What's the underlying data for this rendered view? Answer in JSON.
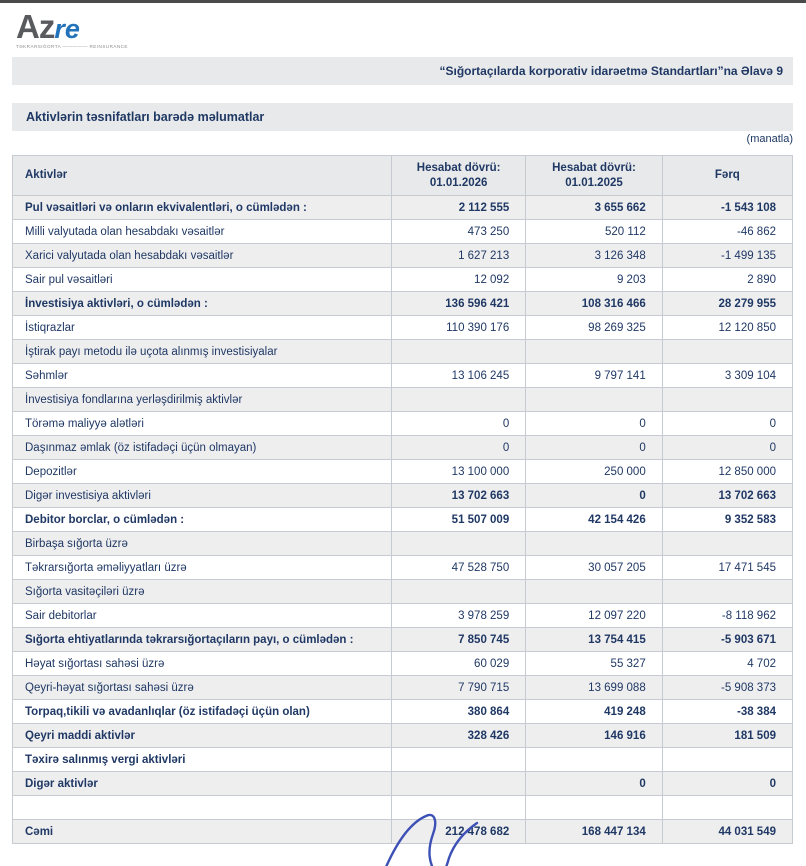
{
  "colors": {
    "navy": "#1f3864",
    "band-bg": "#e8e9ea",
    "row-shade": "#eeeeef",
    "border": "#c6cad1",
    "logo-gray": "#595a5d",
    "logo-blue": "#2273b9",
    "signature-blue": "#3c50b5"
  },
  "logo": {
    "part1": "Az",
    "part2": "re",
    "tagline": "TƏKRARSIĞORTA ————— REINSURANCE"
  },
  "header": {
    "annex_note": "“Sığortaçılarda korporativ idarəetmə Standartları”na Əlavə 9"
  },
  "title": "Aktivlərin təsnifatları barədə məlumatlar",
  "currency_note": "(manatla)",
  "table": {
    "columns": {
      "assets": "Aktivlər",
      "period_2026_line1": "Hesabat dövrü:",
      "period_2026_line2": "01.01.2026",
      "period_2025_line1": "Hesabat dövrü:",
      "period_2025_line2": "01.01.2025",
      "diff": "Fərq"
    },
    "rows": [
      {
        "label": "Pul vəsaitləri və onların ekvivalentləri, o cümlədən :",
        "v2026": "2 112 555",
        "v2025": "3 655 662",
        "diff": "-1 543 108",
        "bold": true
      },
      {
        "label": "Milli valyutada olan hesabdakı vəsaitlər",
        "v2026": "473 250",
        "v2025": "520 112",
        "diff": "-46 862"
      },
      {
        "label": "Xarici valyutada olan hesabdakı vəsaitlər",
        "v2026": "1 627 213",
        "v2025": "3 126 348",
        "diff": "-1 499 135"
      },
      {
        "label": "Sair pul vəsaitləri",
        "v2026": "12 092",
        "v2025": "9 203",
        "diff": "2 890"
      },
      {
        "label": "İnvestisiya aktivləri, o cümlədən :",
        "v2026": "136 596 421",
        "v2025": "108 316 466",
        "diff": "28 279 955",
        "bold": true
      },
      {
        "label": "İstiqrazlar",
        "v2026": "110 390 176",
        "v2025": "98 269 325",
        "diff": "12 120 850"
      },
      {
        "label": "İştirak payı metodu ilə uçota alınmış investisiyalar",
        "v2026": "",
        "v2025": "",
        "diff": ""
      },
      {
        "label": "Səhmlər",
        "v2026": "13 106 245",
        "v2025": "9 797 141",
        "diff": "3 309 104"
      },
      {
        "label": "İnvestisiya fondlarına yerləşdirilmiş aktivlər",
        "v2026": "",
        "v2025": "",
        "diff": ""
      },
      {
        "label": "Törəmə maliyyə alətləri",
        "v2026": "0",
        "v2025": "0",
        "diff": "0"
      },
      {
        "label": "Daşınmaz əmlak (öz istifadəçi üçün olmayan)",
        "v2026": "0",
        "v2025": "0",
        "diff": "0"
      },
      {
        "label": "Depozitlər",
        "v2026": "13 100 000",
        "v2025": "250 000",
        "diff": "12 850 000"
      },
      {
        "label": "Digər investisiya aktivləri",
        "v2026": "13 702 663",
        "v2025": "0",
        "diff": "13 702 663",
        "bold_values": true
      },
      {
        "label": "Debitor borclar, o cümlədən :",
        "v2026": "51 507 009",
        "v2025": "42 154 426",
        "diff": "9 352 583",
        "bold": true
      },
      {
        "label": "Birbaşa sığorta üzrə",
        "v2026": "",
        "v2025": "",
        "diff": ""
      },
      {
        "label": "Təkrarsığorta əməliyyatları üzrə",
        "v2026": "47 528 750",
        "v2025": "30 057 205",
        "diff": "17 471 545"
      },
      {
        "label": "Sığorta vasitəçiləri üzrə",
        "v2026": "",
        "v2025": "",
        "diff": ""
      },
      {
        "label": "Sair debitorlar",
        "v2026": "3 978 259",
        "v2025": "12 097 220",
        "diff": "-8 118 962"
      },
      {
        "label": "Sığorta ehtiyatlarında təkrarsığortaçıların payı, o cümlədən :",
        "v2026": "7 850 745",
        "v2025": "13 754 415",
        "diff": "-5 903 671",
        "bold": true
      },
      {
        "label": "Həyat sığortası sahəsi üzrə",
        "v2026": "60 029",
        "v2025": "55 327",
        "diff": "4 702"
      },
      {
        "label": "Qeyri-həyat sığortası sahəsi üzrə",
        "v2026": "7 790 715",
        "v2025": "13 699 088",
        "diff": "-5 908 373"
      },
      {
        "label": "Torpaq,tikili və avadanlıqlar (öz istifadəçi üçün olan)",
        "v2026": "380 864",
        "v2025": "419 248",
        "diff": "-38 384",
        "bold": true
      },
      {
        "label": "Qeyri maddi aktivlər",
        "v2026": "328 426",
        "v2025": "146 916",
        "diff": "181 509",
        "bold": true
      },
      {
        "label": "Təxirə salınmış vergi aktivləri",
        "v2026": "",
        "v2025": "",
        "diff": "",
        "bold": true
      },
      {
        "label": "Digər aktivlər",
        "v2026": "",
        "v2025": "0",
        "diff": "0",
        "bold": true
      },
      {
        "label": "",
        "v2026": "",
        "v2025": "",
        "diff": ""
      },
      {
        "label": "Cəmi",
        "v2026": "212 478 682",
        "v2025": "168 447 134",
        "diff": "44 031 549",
        "bold": true
      }
    ]
  }
}
